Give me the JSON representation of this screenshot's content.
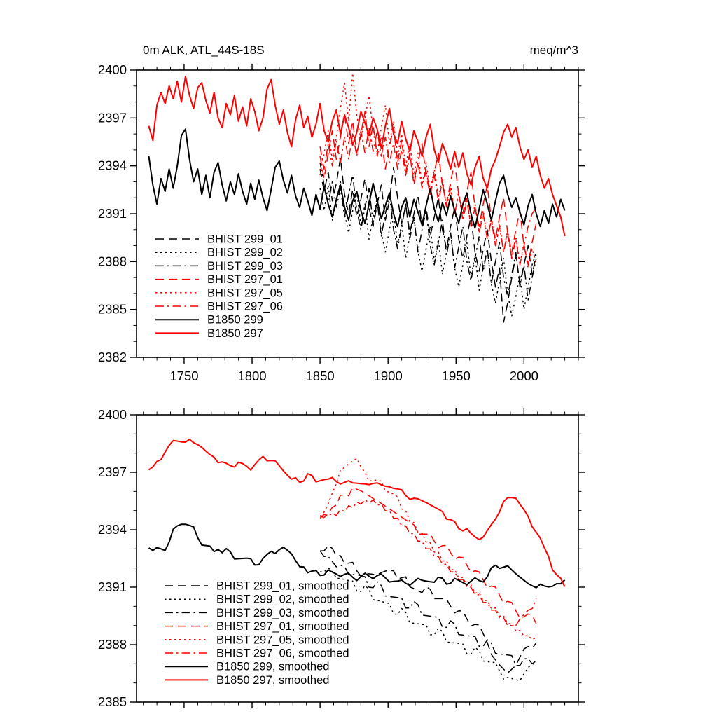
{
  "figure": {
    "background": "#ffffff",
    "axis_color": "#000000",
    "series_colors": {
      "black": "#000000",
      "red": "#ff0000"
    }
  },
  "chart_data": [
    {
      "id": "top",
      "type": "line",
      "title": "0m ALK, ATL_44S-18S",
      "units_label": "meq/m^3",
      "x_axis": {
        "min": 1715,
        "max": 2040,
        "major_ticks": [
          1750,
          1800,
          1850,
          1900,
          1950,
          2000
        ],
        "minor_step": 10,
        "show_labels": true
      },
      "y_axis": {
        "min": 2382,
        "max": 2400,
        "major_step": 3,
        "minor_step": 1
      },
      "legend": [
        "BHIST 299_01",
        "BHIST 299_02",
        "BHIST 299_03",
        "BHIST 297_01",
        "BHIST 297_05",
        "BHIST 297_06",
        "B1850 299",
        "B1850 297"
      ],
      "series": [
        {
          "name": "BHIST 299_01",
          "color": "#000000",
          "style": "dashed",
          "x_start": 1850,
          "x_step": 3,
          "values": [
            2393.8,
            2392.4,
            2393.6,
            2391.8,
            2392.9,
            2394.5,
            2392.2,
            2391.0,
            2392.5,
            2390.8,
            2391.9,
            2393.2,
            2391.4,
            2390.2,
            2391.6,
            2392.8,
            2390.6,
            2391.8,
            2393.9,
            2392.0,
            2390.4,
            2391.5,
            2389.8,
            2391.0,
            2392.2,
            2390.2,
            2391.4,
            2389.6,
            2390.8,
            2392.0,
            2390.0,
            2388.8,
            2390.2,
            2391.4,
            2389.4,
            2388.2,
            2389.6,
            2390.8,
            2388.6,
            2387.4,
            2388.8,
            2390.0,
            2388.0,
            2386.4,
            2387.6,
            2384.2,
            2385.4,
            2387.0,
            2388.4,
            2386.6,
            2387.8,
            2389.0,
            2387.2,
            2388.4
          ]
        },
        {
          "name": "BHIST 299_02",
          "color": "#000000",
          "style": "dotted",
          "x_start": 1850,
          "x_step": 3,
          "values": [
            2392.6,
            2391.2,
            2392.8,
            2390.6,
            2391.8,
            2393.0,
            2391.0,
            2389.8,
            2391.2,
            2392.4,
            2390.2,
            2391.6,
            2389.4,
            2390.8,
            2392.0,
            2389.8,
            2388.6,
            2390.0,
            2391.2,
            2389.0,
            2390.4,
            2388.2,
            2389.6,
            2390.8,
            2388.6,
            2387.4,
            2388.8,
            2390.2,
            2388.0,
            2389.4,
            2387.2,
            2388.6,
            2389.8,
            2387.6,
            2386.4,
            2387.8,
            2389.2,
            2387.0,
            2388.4,
            2386.2,
            2387.6,
            2388.8,
            2386.6,
            2385.4,
            2386.8,
            2388.2,
            2386.0,
            2384.6,
            2385.8,
            2387.2,
            2385.0,
            2386.4,
            2387.8,
            2388.6
          ]
        },
        {
          "name": "BHIST 299_03",
          "color": "#000000",
          "style": "dashdot",
          "x_start": 1850,
          "x_step": 3,
          "values": [
            2394.2,
            2392.8,
            2391.6,
            2393.0,
            2391.4,
            2392.6,
            2390.8,
            2392.2,
            2393.4,
            2391.2,
            2390.0,
            2391.4,
            2392.6,
            2390.4,
            2391.8,
            2389.6,
            2391.0,
            2392.2,
            2390.0,
            2388.8,
            2390.2,
            2391.6,
            2389.4,
            2390.8,
            2388.6,
            2390.0,
            2391.2,
            2389.0,
            2387.8,
            2389.2,
            2390.6,
            2388.4,
            2389.8,
            2387.6,
            2388.9,
            2390.2,
            2388.0,
            2386.8,
            2388.2,
            2389.6,
            2387.4,
            2388.8,
            2386.6,
            2388.0,
            2389.2,
            2387.0,
            2385.8,
            2387.2,
            2388.6,
            2386.4,
            2387.8,
            2385.6,
            2387.0,
            2388.2
          ]
        },
        {
          "name": "BHIST 297_01",
          "color": "#ff0000",
          "style": "dashed",
          "x_start": 1850,
          "x_step": 3,
          "values": [
            2394.6,
            2393.2,
            2394.8,
            2396.2,
            2394.4,
            2395.8,
            2397.2,
            2395.4,
            2396.8,
            2394.8,
            2396.0,
            2397.4,
            2395.2,
            2396.6,
            2394.6,
            2395.8,
            2393.8,
            2395.2,
            2396.4,
            2394.2,
            2395.6,
            2393.6,
            2394.8,
            2392.8,
            2394.2,
            2395.4,
            2393.4,
            2392.2,
            2393.6,
            2394.8,
            2392.8,
            2391.6,
            2393.0,
            2394.2,
            2392.2,
            2391.0,
            2392.4,
            2393.6,
            2391.4,
            2390.2,
            2391.6,
            2392.8,
            2390.6,
            2389.4,
            2390.8,
            2392.0,
            2389.8,
            2388.6,
            2390.0,
            2391.2,
            2389.0,
            2387.8,
            2389.2,
            2390.4
          ]
        },
        {
          "name": "BHIST 297_05",
          "color": "#ff0000",
          "style": "dotted",
          "x_start": 1850,
          "x_step": 3,
          "values": [
            2393.4,
            2394.8,
            2396.2,
            2394.4,
            2395.8,
            2397.6,
            2399.2,
            2396.8,
            2399.8,
            2397.2,
            2395.6,
            2397.0,
            2398.4,
            2396.2,
            2394.8,
            2396.4,
            2397.8,
            2395.4,
            2396.8,
            2394.6,
            2396.0,
            2394.0,
            2395.4,
            2393.4,
            2394.8,
            2392.8,
            2394.2,
            2392.4,
            2393.8,
            2392.0,
            2393.2,
            2391.4,
            2392.8,
            2391.0,
            2392.4,
            2390.6,
            2392.0,
            2390.2,
            2391.6,
            2389.8,
            2391.2,
            2389.4,
            2390.8,
            2389.0,
            2390.4,
            2388.6,
            2390.0,
            2388.2,
            2389.6,
            2387.8,
            2389.2,
            2387.6,
            2388.8,
            2387.9
          ]
        },
        {
          "name": "BHIST 297_06",
          "color": "#ff0000",
          "style": "dashdot",
          "x_start": 1850,
          "x_step": 3,
          "values": [
            2395.2,
            2393.8,
            2395.4,
            2394.0,
            2395.6,
            2394.2,
            2395.8,
            2394.4,
            2396.0,
            2394.6,
            2396.2,
            2394.8,
            2396.4,
            2394.9,
            2396.2,
            2394.6,
            2395.8,
            2394.2,
            2395.4,
            2393.8,
            2395.0,
            2393.4,
            2394.6,
            2393.0,
            2394.2,
            2392.6,
            2393.8,
            2392.2,
            2393.4,
            2391.8,
            2393.0,
            2391.4,
            2392.6,
            2391.0,
            2392.2,
            2390.6,
            2391.8,
            2390.2,
            2391.4,
            2389.8,
            2391.0,
            2389.4,
            2390.6,
            2389.0,
            2390.2,
            2388.6,
            2389.8,
            2388.2,
            2389.4,
            2387.8,
            2389.0,
            2390.2,
            2391.0,
            2391.4
          ]
        },
        {
          "name": "B1850 299",
          "color": "#000000",
          "style": "solid",
          "x_start": 1724,
          "x_step": 3,
          "values": [
            2394.6,
            2392.8,
            2391.6,
            2393.2,
            2392.4,
            2393.8,
            2392.6,
            2394.0,
            2395.9,
            2396.3,
            2394.4,
            2393.0,
            2393.8,
            2392.2,
            2393.4,
            2392.0,
            2393.6,
            2394.2,
            2392.8,
            2391.8,
            2393.0,
            2392.2,
            2393.5,
            2392.4,
            2391.6,
            2392.9,
            2391.9,
            2393.1,
            2392.0,
            2391.2,
            2392.5,
            2393.9,
            2394.3,
            2393.1,
            2392.3,
            2393.4,
            2392.1,
            2391.4,
            2392.6,
            2391.8,
            2390.9,
            2392.2,
            2391.3,
            2392.7,
            2391.6,
            2390.8,
            2391.9,
            2392.8,
            2391.4,
            2390.6,
            2391.8,
            2392.4,
            2391.2,
            2390.4,
            2391.6,
            2392.9,
            2391.8,
            2390.7,
            2391.5,
            2392.3,
            2391.0,
            2390.2,
            2391.4,
            2392.0,
            2390.8,
            2391.9,
            2391.1,
            2390.3,
            2391.5,
            2392.6,
            2391.3,
            2390.5,
            2391.7,
            2390.9,
            2392.1,
            2391.2,
            2390.4,
            2391.6,
            2392.3,
            2391.0,
            2390.1,
            2391.3,
            2392.5,
            2391.6,
            2390.6,
            2391.8,
            2392.9,
            2393.4,
            2392.2,
            2391.4,
            2392.0,
            2391.1,
            2390.3,
            2391.5,
            2392.2,
            2391.0,
            2390.2,
            2391.2,
            2390.4,
            2391.6,
            2390.8,
            2391.9,
            2391.2
          ]
        },
        {
          "name": "B1850 297",
          "color": "#ff0000",
          "style": "solid",
          "x_start": 1724,
          "x_step": 3,
          "values": [
            2396.5,
            2395.6,
            2397.8,
            2398.6,
            2397.9,
            2399.0,
            2398.2,
            2399.3,
            2398.0,
            2399.6,
            2398.4,
            2397.6,
            2398.9,
            2399.2,
            2398.1,
            2397.3,
            2398.6,
            2397.0,
            2396.4,
            2397.9,
            2397.2,
            2398.4,
            2396.8,
            2397.7,
            2396.5,
            2398.2,
            2397.4,
            2396.2,
            2397.0,
            2398.8,
            2399.4,
            2397.8,
            2396.6,
            2397.5,
            2396.1,
            2395.2,
            2396.9,
            2397.8,
            2396.4,
            2397.1,
            2395.8,
            2396.6,
            2397.9,
            2396.2,
            2395.5,
            2396.8,
            2397.5,
            2396.0,
            2397.2,
            2396.4,
            2395.3,
            2396.1,
            2397.4,
            2396.7,
            2395.9,
            2397.0,
            2396.3,
            2395.1,
            2396.5,
            2397.6,
            2396.0,
            2395.4,
            2396.8,
            2395.7,
            2394.9,
            2396.2,
            2395.5,
            2394.6,
            2395.8,
            2396.6,
            2395.0,
            2394.2,
            2395.4,
            2394.7,
            2393.8,
            2394.9,
            2393.9,
            2394.8,
            2393.5,
            2392.8,
            2393.9,
            2394.6,
            2393.2,
            2392.6,
            2393.8,
            2394.4,
            2395.2,
            2396.1,
            2396.6,
            2395.8,
            2396.4,
            2395.2,
            2394.4,
            2395.0,
            2393.9,
            2394.6,
            2393.4,
            2392.6,
            2393.2,
            2392.2,
            2391.5,
            2390.8,
            2389.6
          ]
        }
      ]
    },
    {
      "id": "bottom",
      "type": "line",
      "title": "",
      "units_label": "",
      "x_axis": {
        "min": 1715,
        "max": 2040,
        "major_ticks": [
          1750,
          1800,
          1850,
          1900,
          1950,
          2000
        ],
        "minor_step": 10,
        "show_labels": false
      },
      "y_axis": {
        "min": 2385,
        "max": 2400,
        "major_step": 3,
        "minor_step": 1
      },
      "series_from": "top",
      "smoothing_window": 7,
      "legend": [
        "BHIST 299_01, smoothed",
        "BHIST 299_02, smoothed",
        "BHIST 299_03, smoothed",
        "BHIST 297_01, smoothed",
        "BHIST 297_05, smoothed",
        "BHIST 297_06, smoothed",
        "B1850 299, smoothed",
        "B1850 297, smoothed"
      ]
    }
  ]
}
